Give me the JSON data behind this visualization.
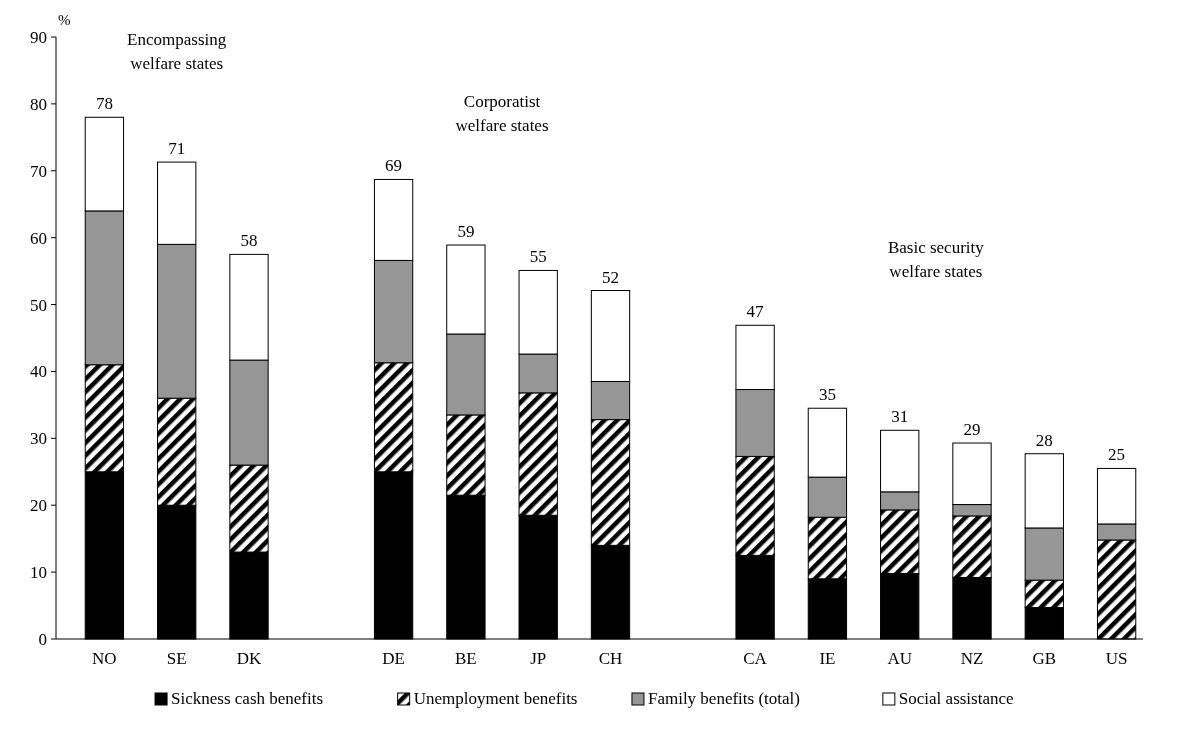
{
  "chart_data": {
    "type": "bar",
    "stacked": true,
    "ylabel": "%",
    "categories": [
      "NO",
      "SE",
      "DK",
      null,
      "DE",
      "BE",
      "JP",
      "CH",
      null,
      "CA",
      "IE",
      "AU",
      "NZ",
      "GB",
      "US"
    ],
    "series": [
      {
        "name": "Sickness cash benefits",
        "color": "#000000",
        "values": [
          25,
          20,
          13,
          null,
          25,
          21.5,
          18.5,
          14,
          null,
          12.5,
          9,
          9.8,
          9.2,
          4.7,
          0
        ]
      },
      {
        "name": "Unemployment benefits",
        "color": "#000000",
        "values": [
          16,
          16,
          13,
          null,
          16.3,
          12,
          18.3,
          18.8,
          null,
          14.8,
          9.2,
          9.5,
          9.2,
          4.1,
          14.8
        ]
      },
      {
        "name": "Family benefits (total)",
        "color": "#969696",
        "values": [
          23,
          23,
          15.7,
          null,
          15.3,
          12.1,
          5.8,
          5.7,
          null,
          10,
          6,
          2.7,
          1.7,
          7.8,
          2.4
        ]
      },
      {
        "name": "Social assistance",
        "color": "#ffffff",
        "values": [
          14,
          12.3,
          15.8,
          null,
          12.1,
          13.3,
          12.5,
          13.6,
          null,
          9.6,
          10.3,
          9.2,
          9.2,
          11.1,
          8.3
        ]
      }
    ],
    "totals": [
      "78",
      "71",
      "58",
      null,
      "69",
      "59",
      "55",
      "52",
      null,
      "47",
      "35",
      "31",
      "29",
      "28",
      "25"
    ],
    "ylim": [
      0,
      90
    ],
    "yticks": [
      0,
      10,
      20,
      30,
      40,
      50,
      60,
      70,
      80,
      90
    ],
    "annotations": [
      "Encompassing welfare states",
      "Corporatist welfare states",
      "Basic security welfare states"
    ],
    "legend": "bottom",
    "grid": false
  }
}
